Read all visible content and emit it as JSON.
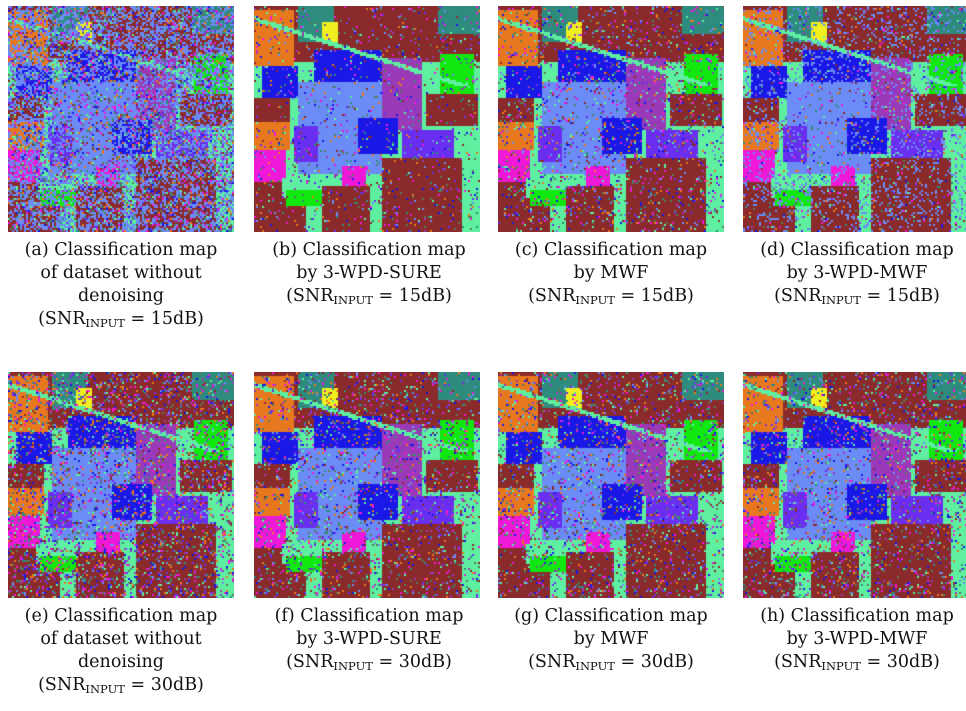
{
  "figure": {
    "legend_colors": {
      "soil_brown": "#8b2a2a",
      "mint_green": "#5ef0a0",
      "periwinkle": "#6b8cf5",
      "blue": "#1a18e6",
      "violet": "#9a3ab8",
      "purple_blue": "#6a2ef0",
      "orange": "#e8781e",
      "magenta": "#f018d8",
      "green": "#10e810",
      "yellow": "#f0f020",
      "teal": "#2e8c7e",
      "grey_green": "#5a7a5a"
    },
    "panels": [
      {
        "variant": "noisy",
        "caption_lines": [
          "(a) Classification map",
          "of dataset without",
          "denoising"
        ],
        "snr_prefix": "(SNR",
        "snr_sub": "INPUT",
        "snr_suffix": " = 15dB)"
      },
      {
        "variant": "sure15",
        "caption_lines": [
          "(b) Classification map",
          "by 3-WPD-SURE"
        ],
        "snr_prefix": "(SNR",
        "snr_sub": "INPUT",
        "snr_suffix": " = 15dB)"
      },
      {
        "variant": "mwf15",
        "caption_lines": [
          "(c) Classification map",
          "by MWF"
        ],
        "snr_prefix": "(SNR",
        "snr_sub": "INPUT",
        "snr_suffix": " = 15dB)"
      },
      {
        "variant": "wpdmwf15",
        "caption_lines": [
          "(d) Classification map",
          "by 3-WPD-MWF"
        ],
        "snr_prefix": "(SNR",
        "snr_sub": "INPUT",
        "snr_suffix": " = 15dB)"
      },
      {
        "variant": "noisy30",
        "caption_lines": [
          "(e) Classification map",
          "of dataset without",
          "denoising"
        ],
        "snr_prefix": "(SNR",
        "snr_sub": "INPUT",
        "snr_suffix": " = 30dB)"
      },
      {
        "variant": "clean30",
        "caption_lines": [
          "(f) Classification map",
          "by 3-WPD-SURE"
        ],
        "snr_prefix": "(SNR",
        "snr_sub": "INPUT",
        "snr_suffix": " = 30dB)"
      },
      {
        "variant": "clean30",
        "caption_lines": [
          "(g) Classification map",
          "by MWF"
        ],
        "snr_prefix": "(SNR",
        "snr_sub": "INPUT",
        "snr_suffix": " = 30dB)"
      },
      {
        "variant": "clean30",
        "caption_lines": [
          "(h) Classification map",
          "by 3-WPD-MWF"
        ],
        "snr_prefix": "(SNR",
        "snr_sub": "INPUT",
        "snr_suffix": " = 30dB)"
      }
    ]
  }
}
